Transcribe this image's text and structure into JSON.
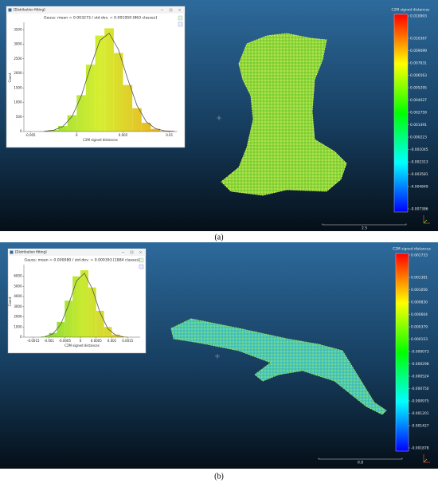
{
  "panels": [
    {
      "caption": "(a)",
      "window_title": "[Distribution fitting]",
      "histogram": {
        "type": "histogram",
        "title": "Gauss: mean = 0.003273 / std.dev. = 0.001959 [863 classes]",
        "xlabel": "C2M signed distances",
        "ylabel": "Count",
        "bins": [
          -0.004,
          -0.003,
          -0.002,
          -0.001,
          0,
          0.001,
          0.002,
          0.003,
          0.004,
          0.005,
          0.006,
          0.007,
          0.008,
          0.009,
          0.01,
          0.011
        ],
        "counts": [
          10,
          50,
          190,
          560,
          1250,
          2300,
          3300,
          3550,
          2700,
          1600,
          800,
          300,
          90,
          20,
          5
        ],
        "fit": [
          8,
          43,
          170,
          520,
          1225,
          2230,
          3130,
          3380,
          2820,
          1810,
          900,
          340,
          100,
          23,
          5
        ],
        "fit_color": "#555555",
        "xlim": [
          -0.0057,
          0.0108
        ],
        "ylim": [
          0,
          3700
        ],
        "xticks": [
          -0.005,
          0,
          0.005,
          0.01
        ],
        "yticks": [
          0,
          500,
          1000,
          1500,
          2000,
          2500,
          3000,
          3500
        ]
      },
      "color_scale": {
        "title": "C2M signed distances",
        "labels": [
          "0.010903",
          "0.010367",
          "0.009099",
          "0.007831",
          "0.006563",
          "0.005295",
          "0.004027",
          "0.002759",
          "0.001491",
          "0.000223",
          "-0.001045",
          "-0.002313",
          "-0.003581",
          "-0.004849",
          "-0.007386"
        ]
      },
      "scale_bar": "2.5"
    },
    {
      "caption": "(b)",
      "window_title": "[Distribution fitting]",
      "histogram": {
        "type": "histogram",
        "title": "Gauss: mean = 0.000080 / std.dev. = 0.000393 [1884 classes]",
        "xlabel": "C2M signed distances",
        "ylabel": "Count",
        "bins": [
          -0.00125,
          -0.001,
          -0.00075,
          -0.0005,
          -0.00025,
          0,
          0.00025,
          0.0005,
          0.00075,
          0.001,
          0.00125,
          0.0015
        ],
        "counts": [
          70,
          420,
          1500,
          3600,
          6000,
          6600,
          4900,
          2600,
          1000,
          260,
          50
        ],
        "fit": [
          55,
          330,
          1270,
          3240,
          5550,
          6310,
          4780,
          2420,
          820,
          185,
          30
        ],
        "fit_color": "#555555",
        "xlim": [
          -0.0018,
          0.0019
        ],
        "ylim": [
          0,
          7000
        ],
        "xticks": [
          -0.0015,
          -0.001,
          -0.0005,
          0,
          0.0005,
          0.001,
          0.0015
        ],
        "yticks": [
          0,
          1000,
          2000,
          3000,
          4000,
          5000,
          6000
        ]
      },
      "color_scale": {
        "title": "C2M signed distances",
        "labels": [
          "0.001733",
          "0.001381",
          "0.001056",
          "0.000830",
          "0.000604",
          "0.000379",
          "0.000153",
          "-0.000073",
          "-0.000298",
          "-0.000524",
          "-0.000750",
          "-0.000975",
          "-0.001201",
          "-0.001427",
          "-0.001878"
        ]
      },
      "scale_bar": "0.8"
    }
  ]
}
